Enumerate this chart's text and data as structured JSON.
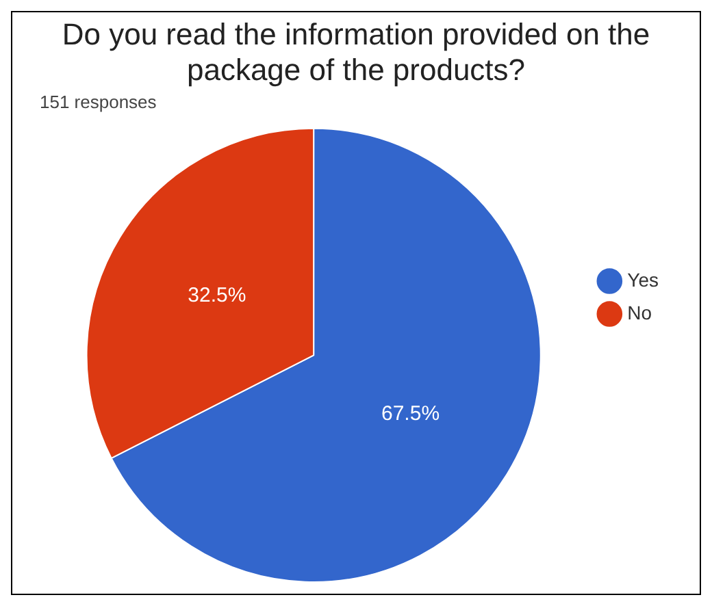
{
  "chart_data": {
    "type": "pie",
    "title": "Do you read the information provided on the package of the products?",
    "subtitle": "151 responses",
    "categories": [
      "Yes",
      "No"
    ],
    "values": [
      67.5,
      32.5
    ],
    "colors": [
      "#3366cc",
      "#dc3912"
    ],
    "value_labels": [
      "67.5%",
      "32.5%"
    ],
    "legend": "right"
  }
}
